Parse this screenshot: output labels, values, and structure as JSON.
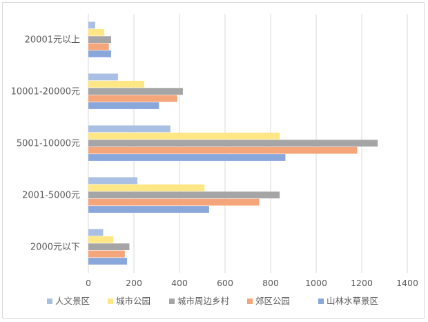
{
  "chart_data": {
    "type": "bar",
    "orientation": "horizontal",
    "categories": [
      "2000元以下",
      "2001-5000元",
      "5001-10000元",
      "10001-20000元",
      "20001元以上"
    ],
    "series": [
      {
        "name": "人文景区",
        "color": "#a9bfe3",
        "values": [
          65,
          215,
          360,
          130,
          30
        ]
      },
      {
        "name": "城市公园",
        "color": "#ffe785",
        "values": [
          110,
          510,
          840,
          245,
          70
        ]
      },
      {
        "name": "城市周边乡村",
        "color": "#a5a5a5",
        "values": [
          180,
          840,
          1270,
          415,
          100
        ]
      },
      {
        "name": "郊区公园",
        "color": "#f5a57a",
        "values": [
          160,
          750,
          1180,
          390,
          90
        ]
      },
      {
        "name": "山林水草景区",
        "color": "#8aa7dc",
        "values": [
          170,
          530,
          865,
          310,
          100
        ]
      }
    ],
    "xticks": [
      "0",
      "200",
      "400",
      "600",
      "800",
      "1000",
      "1200",
      "1400"
    ],
    "xlim": [
      0,
      1400
    ],
    "grid": true,
    "legend": "bottom"
  }
}
